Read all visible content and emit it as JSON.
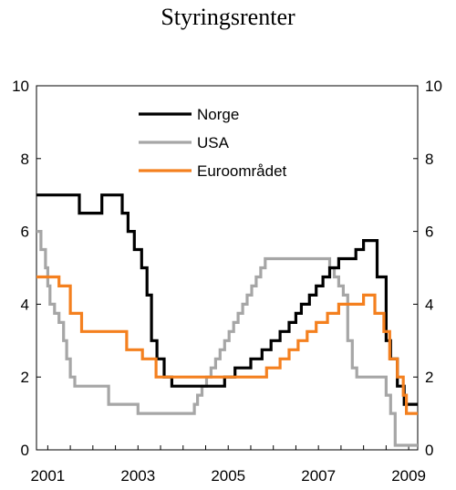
{
  "chart_data": {
    "type": "line",
    "title": "Styringsrenter",
    "xlabel": "",
    "ylabel": "",
    "xlim": [
      2000.75,
      2009.2
    ],
    "ylim": [
      0,
      10
    ],
    "yticks": [
      0,
      2,
      4,
      6,
      8,
      10
    ],
    "xtick_labels": [
      {
        "label": "2001",
        "x": 2001
      },
      {
        "label": "2003",
        "x": 2003
      },
      {
        "label": "2005",
        "x": 2005
      },
      {
        "label": "2007",
        "x": 2007
      },
      {
        "label": "2009",
        "x": 2009
      }
    ],
    "legend_position": "top-center",
    "grid": false,
    "series": [
      {
        "name": "Norge",
        "color": "#000000",
        "step": true,
        "points": [
          [
            2000.75,
            7.0
          ],
          [
            2001.7,
            6.5
          ],
          [
            2002.2,
            7.0
          ],
          [
            2002.65,
            6.5
          ],
          [
            2002.78,
            6.0
          ],
          [
            2002.92,
            5.5
          ],
          [
            2003.08,
            5.0
          ],
          [
            2003.2,
            4.25
          ],
          [
            2003.3,
            3.0
          ],
          [
            2003.42,
            2.5
          ],
          [
            2003.58,
            2.0
          ],
          [
            2003.75,
            1.75
          ],
          [
            2004.92,
            2.0
          ],
          [
            2005.15,
            2.25
          ],
          [
            2005.5,
            2.5
          ],
          [
            2005.75,
            2.75
          ],
          [
            2005.95,
            3.0
          ],
          [
            2006.15,
            3.25
          ],
          [
            2006.35,
            3.5
          ],
          [
            2006.5,
            3.75
          ],
          [
            2006.62,
            4.0
          ],
          [
            2006.8,
            4.25
          ],
          [
            2006.95,
            4.5
          ],
          [
            2007.1,
            4.75
          ],
          [
            2007.25,
            5.0
          ],
          [
            2007.45,
            5.25
          ],
          [
            2007.83,
            5.5
          ],
          [
            2008.0,
            5.75
          ],
          [
            2008.3,
            4.75
          ],
          [
            2008.5,
            3.0
          ],
          [
            2008.6,
            2.5
          ],
          [
            2008.75,
            1.75
          ],
          [
            2008.9,
            1.25
          ],
          [
            2009.2,
            1.25
          ]
        ]
      },
      {
        "name": "USA",
        "color": "#a6a6a6",
        "step": true,
        "points": [
          [
            2000.75,
            6.0
          ],
          [
            2000.85,
            5.5
          ],
          [
            2000.95,
            5.0
          ],
          [
            2001.0,
            4.5
          ],
          [
            2001.05,
            4.0
          ],
          [
            2001.15,
            3.75
          ],
          [
            2001.25,
            3.5
          ],
          [
            2001.35,
            3.0
          ],
          [
            2001.42,
            2.5
          ],
          [
            2001.5,
            2.0
          ],
          [
            2001.6,
            1.75
          ],
          [
            2002.35,
            1.25
          ],
          [
            2003.0,
            1.0
          ],
          [
            2004.25,
            1.25
          ],
          [
            2004.32,
            1.5
          ],
          [
            2004.42,
            1.75
          ],
          [
            2004.52,
            2.0
          ],
          [
            2004.62,
            2.25
          ],
          [
            2004.72,
            2.5
          ],
          [
            2004.82,
            2.75
          ],
          [
            2004.92,
            3.0
          ],
          [
            2005.02,
            3.25
          ],
          [
            2005.12,
            3.5
          ],
          [
            2005.22,
            3.75
          ],
          [
            2005.32,
            4.0
          ],
          [
            2005.42,
            4.25
          ],
          [
            2005.52,
            4.5
          ],
          [
            2005.62,
            4.75
          ],
          [
            2005.72,
            5.0
          ],
          [
            2005.82,
            5.25
          ],
          [
            2007.25,
            5.0
          ],
          [
            2007.35,
            4.75
          ],
          [
            2007.45,
            4.5
          ],
          [
            2007.55,
            4.25
          ],
          [
            2007.65,
            3.0
          ],
          [
            2007.75,
            2.25
          ],
          [
            2007.85,
            2.0
          ],
          [
            2008.5,
            1.5
          ],
          [
            2008.6,
            1.0
          ],
          [
            2008.7,
            0.125
          ],
          [
            2009.2,
            0.125
          ]
        ]
      },
      {
        "name": "Euroområdet",
        "color": "#f4801f",
        "step": true,
        "points": [
          [
            2000.75,
            4.75
          ],
          [
            2001.25,
            4.5
          ],
          [
            2001.5,
            3.75
          ],
          [
            2001.75,
            3.25
          ],
          [
            2002.75,
            2.75
          ],
          [
            2003.1,
            2.5
          ],
          [
            2003.4,
            2.0
          ],
          [
            2005.85,
            2.25
          ],
          [
            2006.15,
            2.5
          ],
          [
            2006.35,
            2.75
          ],
          [
            2006.55,
            3.0
          ],
          [
            2006.75,
            3.25
          ],
          [
            2006.95,
            3.5
          ],
          [
            2007.2,
            3.75
          ],
          [
            2007.45,
            4.0
          ],
          [
            2008.0,
            4.25
          ],
          [
            2008.25,
            3.75
          ],
          [
            2008.45,
            3.25
          ],
          [
            2008.58,
            2.5
          ],
          [
            2008.75,
            2.0
          ],
          [
            2008.88,
            1.5
          ],
          [
            2008.95,
            1.0
          ],
          [
            2009.2,
            1.0
          ]
        ]
      }
    ]
  }
}
